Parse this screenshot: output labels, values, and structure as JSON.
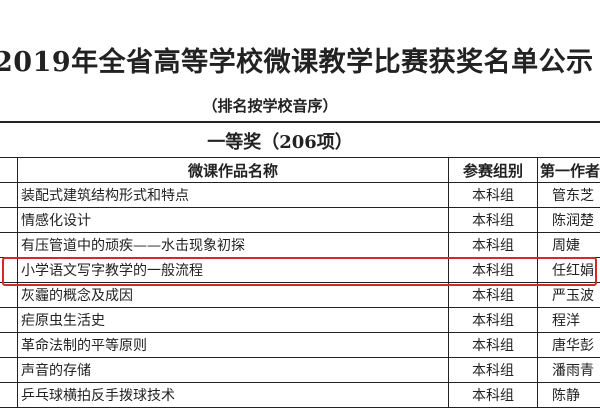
{
  "title": "2019年全省高等学校微课教学比赛获奖名单公示",
  "subtitle": "（排名按学校音序）",
  "award_heading": "一等奖（206项）",
  "highlight_color": "#d12a2a",
  "table": {
    "headers": [
      "微课作品名称",
      "参赛组别",
      "第一作者"
    ],
    "rows": [
      [
        "装配式建筑结构形式和特点",
        "本科组",
        "管东芝"
      ],
      [
        "情感化设计",
        "本科组",
        "陈润楚"
      ],
      [
        "有压管道中的顽疾——水击现象初探",
        "本科组",
        "周婕"
      ],
      [
        "小学语文写字教学的一般流程",
        "本科组",
        "任红娟"
      ],
      [
        "灰霾的概念及成因",
        "本科组",
        "严玉波"
      ],
      [
        "疟原虫生活史",
        "本科组",
        "程洋"
      ],
      [
        "革命法制的平等原则",
        "本科组",
        "唐华彭"
      ],
      [
        "声音的存储",
        "本科组",
        "潘雨青"
      ],
      [
        "乒乓球横拍反手拨球技术",
        "本科组",
        "陈静"
      ]
    ],
    "highlighted_row": 3
  }
}
